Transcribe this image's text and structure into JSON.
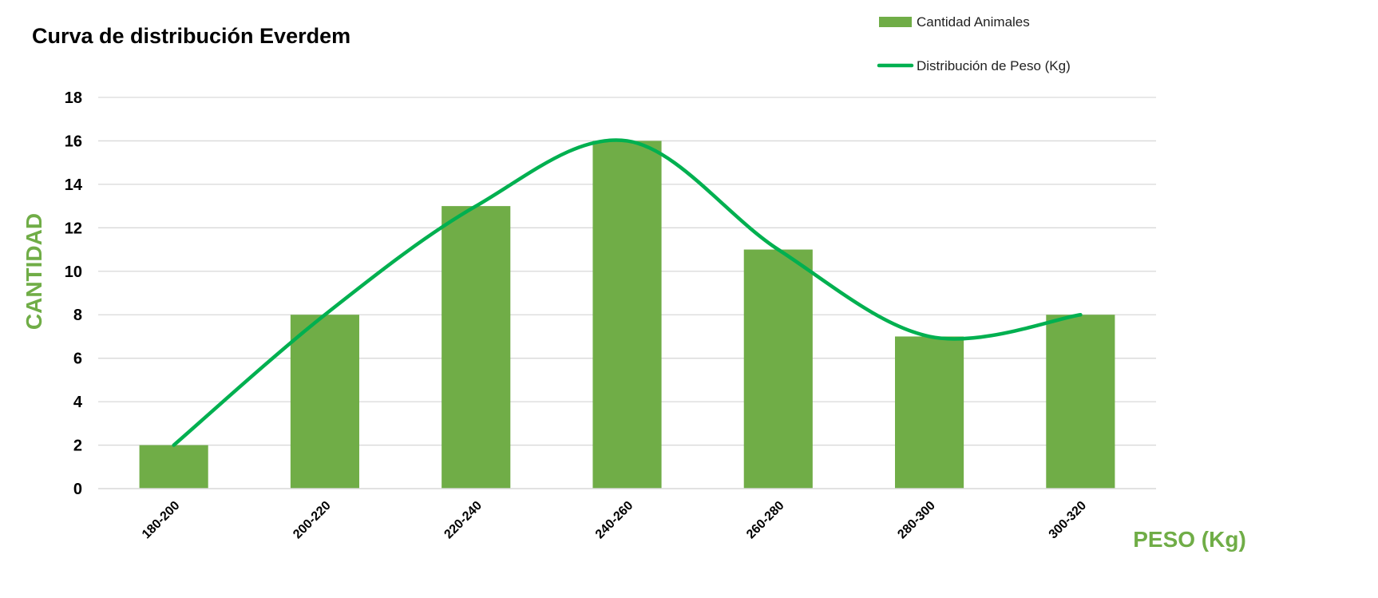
{
  "colors": {
    "bar": "#70AD47",
    "line": "#00B050",
    "axis_label": "#70AD47",
    "grid": "#D9D9D9"
  },
  "chart_data": {
    "type": "bar",
    "title": "Curva de distribución Everdem",
    "xlabel": "PESO (Kg)",
    "ylabel": "CANTIDAD",
    "categories": [
      "180-200",
      "200-220",
      "220-240",
      "240-260",
      "260-280",
      "280-300",
      "300-320"
    ],
    "series": [
      {
        "name": "Cantidad Animales",
        "type": "bar",
        "values": [
          2,
          8,
          13,
          16,
          11,
          7,
          8
        ]
      },
      {
        "name": "Distribución de Peso (Kg)",
        "type": "line",
        "smooth": true,
        "values": [
          2,
          8,
          13,
          16,
          11,
          7,
          8
        ]
      }
    ],
    "ylim": [
      0,
      18
    ],
    "yticks": [
      0,
      2,
      4,
      6,
      8,
      10,
      12,
      14,
      16,
      18
    ],
    "grid": true,
    "legend_position": "top-right"
  }
}
